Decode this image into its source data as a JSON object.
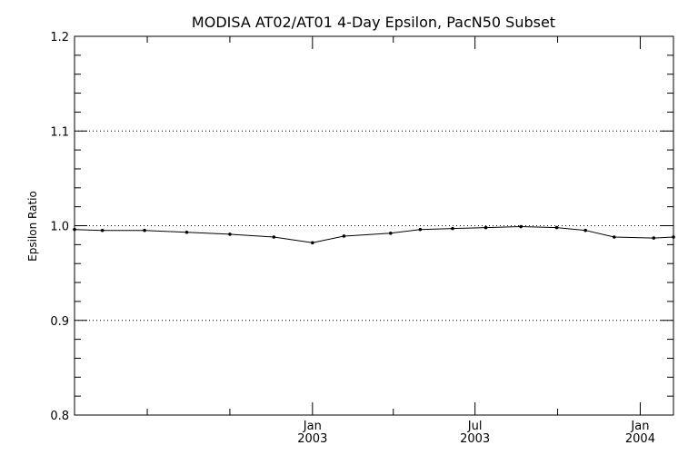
{
  "chart_data": {
    "type": "line",
    "title": "MODISA AT02/AT01 4-Day Epsilon, PacN50 Subset",
    "xlabel": "",
    "ylabel": "Epsilon Ratio",
    "ylim": [
      0.8,
      1.2
    ],
    "xlim": [
      "2002-04-11",
      "2004-02-07"
    ],
    "y_ticks": [
      "0.8",
      "0.9",
      "1.0",
      "1.1",
      "1.2"
    ],
    "x_ticks": [
      {
        "date": "2003-01-01",
        "month": "Jan",
        "year": "2003"
      },
      {
        "date": "2003-07-01",
        "month": "Jul",
        "year": "2003"
      },
      {
        "date": "2004-01-01",
        "month": "Jan",
        "year": "2004"
      }
    ],
    "x_minor_tick_dates": [
      "2002-07-01",
      "2002-10-01",
      "2003-04-01",
      "2003-10-01"
    ],
    "grid": "horizontal dotted at major y ticks",
    "series": [
      {
        "x": [
          "2002-04-11",
          "2002-05-12",
          "2002-06-28",
          "2002-08-14",
          "2002-10-01",
          "2002-11-19",
          "2003-01-01",
          "2003-02-05",
          "2003-03-29",
          "2003-05-01",
          "2003-06-06",
          "2003-07-13",
          "2003-08-21",
          "2003-09-30",
          "2003-11-01",
          "2003-12-03",
          "2004-01-16",
          "2004-02-07"
        ],
        "y": [
          0.996,
          0.995,
          0.995,
          0.993,
          0.991,
          0.988,
          0.982,
          0.989,
          0.992,
          0.996,
          0.997,
          0.998,
          0.999,
          0.998,
          0.995,
          0.988,
          0.987,
          0.988
        ]
      }
    ]
  }
}
